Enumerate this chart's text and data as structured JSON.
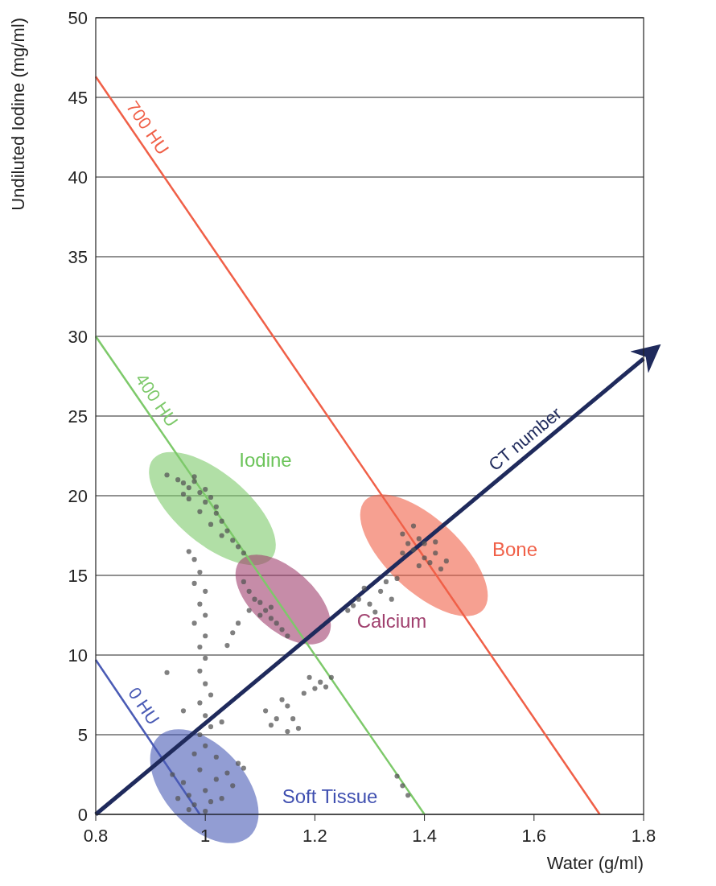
{
  "chart_data": {
    "type": "scatter",
    "xlabel": "Water (g/ml)",
    "ylabel": "Undiluted Iodine (mg/ml)",
    "xlim": [
      0.8,
      1.8
    ],
    "xticks": [
      0.8,
      1,
      1.2,
      1.4,
      1.6,
      1.8
    ],
    "ylim": [
      0,
      50
    ],
    "yticks": [
      0,
      5,
      10,
      15,
      20,
      25,
      30,
      35,
      40,
      45,
      50
    ],
    "grid": "y",
    "annotations": [
      "Iodine",
      "Bone",
      "Calcium",
      "Soft Tissue"
    ],
    "series": [
      {
        "name": "700 HU",
        "type": "line",
        "color": "#f06048",
        "x": [
          0.8,
          1.72
        ],
        "values": [
          46.3,
          0
        ]
      },
      {
        "name": "400 HU",
        "type": "line",
        "color": "#7dc96a",
        "x": [
          0.8,
          1.4
        ],
        "values": [
          30,
          0
        ]
      },
      {
        "name": "0 HU",
        "type": "line",
        "color": "#4a5bb5",
        "x": [
          0.8,
          0.99
        ],
        "values": [
          9.7,
          0
        ]
      },
      {
        "name": "CT number",
        "type": "line",
        "color": "#1f2a5c",
        "x": [
          0.8,
          1.8
        ],
        "values": [
          0,
          28.6
        ]
      },
      {
        "marker": "circle",
        "color": "#555555",
        "x": [
          0.93,
          0.95,
          0.96,
          0.97,
          0.98,
          0.99,
          0.97,
          1.0,
          1.01,
          0.99,
          1.02,
          1.03,
          1.01,
          1.04,
          1.05,
          1.03,
          1.06,
          1.07,
          0.98,
          1.0,
          1.02,
          0.96,
          0.97,
          0.98,
          0.99,
          0.98,
          1.0,
          0.99,
          1.0,
          0.98,
          1.0,
          0.99,
          1.0,
          0.99,
          1.0,
          1.01,
          0.99,
          1.0,
          1.01,
          0.99,
          1.0,
          0.93,
          0.96,
          1.03,
          0.98,
          0.94,
          0.96,
          0.97,
          0.98,
          1.0,
          1.01,
          0.99,
          1.02,
          1.03,
          0.97,
          0.95,
          1.04,
          1.05,
          1.06,
          1.0,
          1.02,
          1.07,
          1.07,
          1.08,
          1.09,
          1.1,
          1.11,
          1.12,
          1.13,
          1.14,
          1.15,
          1.1,
          1.12,
          1.08,
          1.06,
          1.05,
          1.04,
          1.11,
          1.13,
          1.14,
          1.15,
          1.16,
          1.17,
          1.18,
          1.2,
          1.21,
          1.19,
          1.22,
          1.23,
          1.15,
          1.12,
          1.26,
          1.28,
          1.29,
          1.3,
          1.31,
          1.33,
          1.34,
          1.35,
          1.27,
          1.32,
          1.36,
          1.37,
          1.38,
          1.39,
          1.4,
          1.41,
          1.42,
          1.43,
          1.38,
          1.4,
          1.36,
          1.44,
          1.39,
          1.42,
          1.35,
          1.36,
          1.37
        ],
        "values": [
          21.3,
          21,
          20.8,
          20.5,
          20.9,
          20.2,
          19.8,
          19.6,
          19.9,
          19,
          18.9,
          18.4,
          18.2,
          17.8,
          17.2,
          17.5,
          16.8,
          16.4,
          21.2,
          20.4,
          19.3,
          20.1,
          16.5,
          16,
          15.2,
          14.5,
          14,
          13.2,
          12.5,
          12,
          11.2,
          10.5,
          9.8,
          9,
          8.2,
          7.5,
          7,
          6.2,
          5.5,
          5,
          4.3,
          8.9,
          6.5,
          5.8,
          3.8,
          2.5,
          2,
          1.2,
          0.6,
          1.5,
          0.8,
          2.8,
          2.2,
          1,
          0.3,
          1,
          2.6,
          1.8,
          3.2,
          0.2,
          3.6,
          2.9,
          14.6,
          14,
          13.5,
          13.3,
          12.8,
          12.3,
          12,
          11.6,
          11.2,
          12.5,
          13,
          12.8,
          12,
          11.4,
          10.6,
          6.5,
          6,
          7.2,
          6.8,
          6,
          5.4,
          7.6,
          7.9,
          8.3,
          8.6,
          8,
          8.6,
          5.2,
          5.6,
          12.8,
          13.5,
          14.2,
          13.2,
          12.7,
          14.6,
          13.5,
          14.8,
          13.1,
          14,
          17.6,
          17,
          16.6,
          17.3,
          16.1,
          15.8,
          16.4,
          15.4,
          18.1,
          17,
          16.4,
          15.9,
          15.6,
          17.1,
          2.4,
          1.8,
          1.2
        ]
      }
    ]
  }
}
